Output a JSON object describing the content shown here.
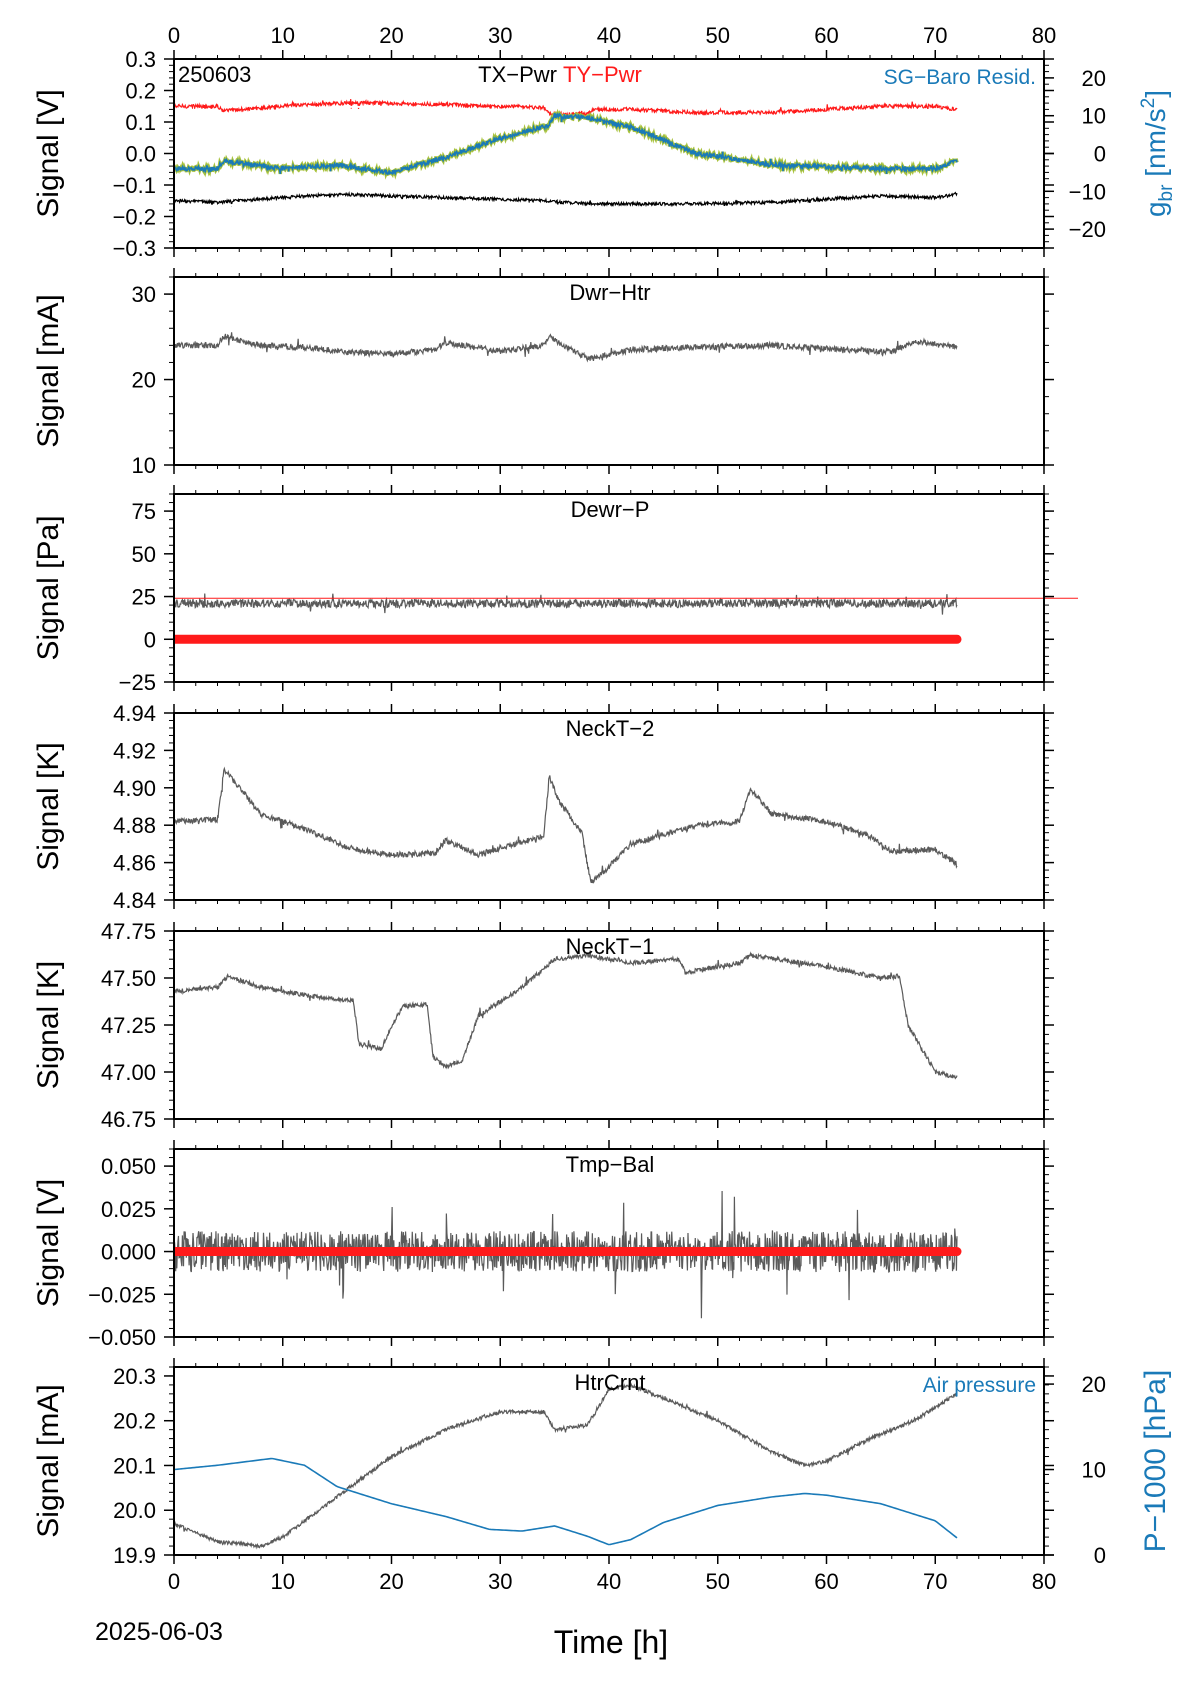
{
  "figure": {
    "date_label": "2025-06-03",
    "xlabel": "Time [h]",
    "xlim": [
      0,
      80
    ],
    "xticks": [
      0,
      10,
      20,
      30,
      40,
      50,
      60,
      70,
      80
    ],
    "top_axis_ticks": true
  },
  "colors": {
    "trace_gray": "#5a5a5a",
    "red": "#ff1a1a",
    "blue": "#1a7ab8",
    "green": "#a8c23a",
    "black": "#000000",
    "white": "#ffffff"
  },
  "chart_data": [
    {
      "type": "line",
      "title": "TX−Pwr",
      "title_secondary": "TY−Pwr",
      "stamp": "250603",
      "ylabel": "Signal [V]",
      "ylim": [
        -0.3,
        0.3
      ],
      "yticks": [
        -0.3,
        -0.2,
        -0.1,
        0.0,
        0.1,
        0.2,
        0.3
      ],
      "ytick_labels": [
        "−0.3",
        "−0.2",
        "−0.1",
        "0.0",
        "0.1",
        "0.2",
        "0.3"
      ],
      "right_axis": {
        "label": "g",
        "label_sub": "br",
        "label_tail": " [nm/s",
        "label_sup": "2",
        "label_end": "]",
        "ylim": [
          -25,
          25
        ],
        "ticks": [
          -20,
          -10,
          0,
          10,
          20
        ],
        "tick_labels": [
          "−20",
          "−10",
          "0",
          "10",
          "20"
        ]
      },
      "legend_right": "SG−Baro Resid.",
      "series": [
        {
          "name": "TY−Pwr",
          "color": "red",
          "x": [
            0,
            4,
            4.6,
            8,
            12,
            16,
            20,
            25,
            30,
            34,
            34.6,
            38,
            38.5,
            42,
            48,
            55,
            60,
            65,
            70,
            72
          ],
          "y": [
            0.15,
            0.15,
            0.135,
            0.145,
            0.155,
            0.16,
            0.16,
            0.155,
            0.15,
            0.145,
            0.125,
            0.125,
            0.14,
            0.14,
            0.13,
            0.13,
            0.14,
            0.15,
            0.15,
            0.14
          ],
          "noise": 0.006
        },
        {
          "name": "TX−Pwr",
          "color": "black",
          "x": [
            0,
            4,
            8,
            12,
            16,
            20,
            25,
            30,
            34,
            38,
            42,
            48,
            55,
            60,
            65,
            70,
            72
          ],
          "y": [
            -0.15,
            -0.155,
            -0.145,
            -0.135,
            -0.13,
            -0.135,
            -0.14,
            -0.145,
            -0.15,
            -0.16,
            -0.16,
            -0.16,
            -0.155,
            -0.145,
            -0.135,
            -0.14,
            -0.13
          ],
          "noise": 0.005
        },
        {
          "name": "SG−Baro Resid.",
          "color": "blue",
          "axis": "right",
          "x": [
            0,
            4,
            4.5,
            10,
            15,
            20,
            25,
            30,
            34.5,
            35,
            38,
            42,
            48,
            55,
            60,
            65,
            70,
            72
          ],
          "y": [
            -4,
            -4,
            -2,
            -4,
            -3,
            -5,
            -1,
            4,
            7.5,
            10,
            9.5,
            7,
            0,
            -3,
            -3.5,
            -4,
            -4,
            -2
          ],
          "noise": 0.6
        }
      ]
    },
    {
      "type": "line",
      "title": "Dwr−Htr",
      "ylabel": "Signal [mA]",
      "ylim": [
        10,
        32
      ],
      "yticks": [
        10,
        20,
        30
      ],
      "ytick_labels": [
        "10",
        "20",
        "30"
      ],
      "series": [
        {
          "name": "Dwr−Htr",
          "color": "trace_gray",
          "x": [
            0,
            4,
            4.5,
            8,
            12,
            16,
            20,
            24,
            25,
            30,
            34,
            34.5,
            38,
            38.5,
            42,
            48,
            55,
            60,
            66,
            68,
            72
          ],
          "y": [
            24,
            24,
            25,
            24,
            23.8,
            23.2,
            23,
            23.5,
            24.3,
            23.3,
            24,
            25,
            22.5,
            22.5,
            23.5,
            23.8,
            24,
            23.6,
            23.2,
            24.5,
            23.8
          ],
          "noise": 0.35
        }
      ]
    },
    {
      "type": "line",
      "title": "Dewr−P",
      "ylabel": "Signal [Pa]",
      "ylim": [
        -25,
        85
      ],
      "yticks": [
        -25,
        0,
        25,
        50,
        75
      ],
      "ytick_labels": [
        "−25",
        "0",
        "25",
        "50",
        "75"
      ],
      "threshold": 24,
      "series": [
        {
          "name": "Dewr−P",
          "color": "trace_gray",
          "x": [
            0,
            72
          ],
          "y": [
            21,
            21
          ],
          "noise": 2.5
        },
        {
          "name": "",
          "color": "red",
          "x": [
            0,
            72
          ],
          "y": [
            0,
            0
          ]
        }
      ]
    },
    {
      "type": "line",
      "title": "NeckT−2",
      "ylabel": "Signal [K]",
      "ylim": [
        4.84,
        4.94
      ],
      "yticks": [
        4.84,
        4.86,
        4.88,
        4.9,
        4.92,
        4.94
      ],
      "ytick_labels": [
        "4.84",
        "4.86",
        "4.88",
        "4.90",
        "4.92",
        "4.94"
      ],
      "series": [
        {
          "name": "NeckT−2",
          "color": "trace_gray",
          "x": [
            0,
            4,
            4.6,
            8,
            12,
            16,
            20,
            24,
            25,
            28,
            30,
            34,
            34.5,
            35.5,
            37.5,
            38.3,
            39,
            42,
            48,
            52,
            53,
            55,
            60,
            64,
            66,
            70,
            72
          ],
          "y": [
            4.882,
            4.883,
            4.91,
            4.886,
            4.878,
            4.868,
            4.864,
            4.865,
            4.872,
            4.864,
            4.868,
            4.874,
            4.906,
            4.892,
            4.876,
            4.85,
            4.852,
            4.87,
            4.88,
            4.882,
            4.899,
            4.886,
            4.882,
            4.874,
            4.866,
            4.867,
            4.859
          ],
          "noise": 0.0015
        }
      ]
    },
    {
      "type": "line",
      "title": "NeckT−1",
      "ylabel": "Signal [K]",
      "ylim": [
        46.75,
        47.75
      ],
      "yticks": [
        46.75,
        47.0,
        47.25,
        47.5,
        47.75
      ],
      "ytick_labels": [
        "46.75",
        "47.00",
        "47.25",
        "47.50",
        "47.75"
      ],
      "series": [
        {
          "name": "NeckT−1",
          "color": "trace_gray",
          "x": [
            0,
            4,
            5,
            8,
            13,
            16.5,
            17,
            19,
            21,
            23.3,
            23.8,
            25,
            26.5,
            28,
            32,
            35,
            38,
            42,
            46.5,
            47,
            52,
            53,
            60,
            65,
            66.7,
            67.5,
            69,
            70,
            72
          ],
          "y": [
            47.43,
            47.45,
            47.51,
            47.45,
            47.4,
            47.38,
            47.15,
            47.12,
            47.35,
            47.36,
            47.08,
            47.03,
            47.06,
            47.3,
            47.45,
            47.6,
            47.62,
            47.58,
            47.6,
            47.53,
            47.58,
            47.62,
            47.56,
            47.5,
            47.51,
            47.25,
            47.1,
            47.0,
            46.97
          ],
          "noise": 0.012
        }
      ]
    },
    {
      "type": "line",
      "title": "Tmp−Bal",
      "ylabel": "Signal [V]",
      "ylim": [
        -0.05,
        0.06
      ],
      "yticks": [
        -0.05,
        -0.025,
        0.0,
        0.025,
        0.05
      ],
      "ytick_labels": [
        "−0.050",
        "−0.025",
        "0.000",
        "0.025",
        "0.050"
      ],
      "series": [
        {
          "name": "Tmp−Bal",
          "color": "trace_gray",
          "x": [
            0,
            72
          ],
          "y": [
            0,
            0
          ],
          "noise": 0.012
        },
        {
          "name": "",
          "color": "red",
          "x": [
            0,
            72
          ],
          "y": [
            0,
            0
          ]
        }
      ]
    },
    {
      "type": "line",
      "title": "HtrCrnt",
      "ylabel": "Signal [mA]",
      "ylim": [
        19.9,
        20.32
      ],
      "yticks": [
        19.9,
        20.0,
        20.1,
        20.2,
        20.3
      ],
      "ytick_labels": [
        "19.9",
        "20.0",
        "20.1",
        "20.2",
        "20.3"
      ],
      "right_axis": {
        "label": "P−1000 [hPa]",
        "ylim": [
          0,
          22
        ],
        "ticks": [
          0,
          10,
          20
        ],
        "tick_labels": [
          "0",
          "10",
          "20"
        ]
      },
      "legend_right": "Air pressure",
      "series": [
        {
          "name": "HtrCrnt",
          "color": "trace_gray",
          "x": [
            0,
            4,
            8,
            10,
            15,
            20,
            25,
            30,
            34,
            35,
            38,
            40,
            42,
            46,
            50,
            55,
            58,
            60,
            64,
            68,
            72
          ],
          "y": [
            19.97,
            19.93,
            19.92,
            19.94,
            20.03,
            20.12,
            20.18,
            20.22,
            20.22,
            20.18,
            20.19,
            20.27,
            20.28,
            20.24,
            20.2,
            20.13,
            20.1,
            20.11,
            20.16,
            20.2,
            20.26
          ],
          "noise": 0.004
        },
        {
          "name": "Air pressure",
          "color": "blue",
          "axis": "right",
          "x": [
            0,
            4,
            9,
            12,
            15,
            20,
            25,
            29,
            32,
            35,
            38,
            40,
            42,
            45,
            50,
            55,
            58,
            60,
            65,
            70,
            72
          ],
          "y": [
            10,
            10.5,
            11.3,
            10.5,
            8,
            6,
            4.5,
            3,
            2.8,
            3.4,
            2.2,
            1.2,
            1.8,
            3.8,
            5.8,
            6.8,
            7.2,
            7,
            6,
            4,
            2
          ]
        }
      ]
    }
  ]
}
